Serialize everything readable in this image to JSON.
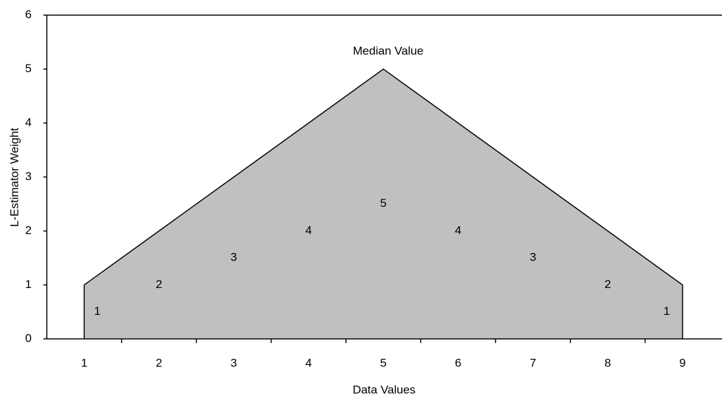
{
  "chart_data": {
    "type": "area",
    "x_label": "Data Values",
    "y_label": "L-Estimator Weight",
    "annotation": "Median Value",
    "x": [
      1,
      2,
      3,
      4,
      5,
      6,
      7,
      8,
      9
    ],
    "values": [
      1,
      2,
      3,
      4,
      5,
      4,
      3,
      2,
      1
    ],
    "color": "#c0c0c0",
    "line_color": "#000000",
    "xlim": [
      0.5,
      9.5
    ],
    "xticks": [
      1,
      2,
      3,
      4,
      5,
      6,
      7,
      8,
      9
    ],
    "xminorticks": [
      1.5,
      2.5,
      3.5,
      4.5,
      5.5,
      6.5,
      7.5,
      8.5
    ],
    "ylim": [
      0,
      6
    ],
    "yticks": [
      0,
      1,
      2,
      3,
      4,
      5,
      6
    ],
    "grid": false
  }
}
